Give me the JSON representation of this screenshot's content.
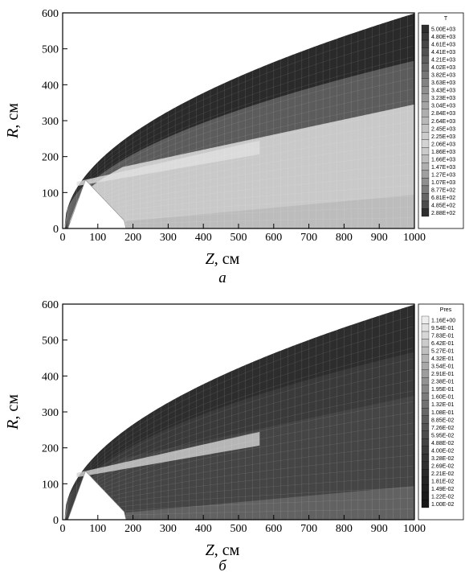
{
  "chart_data": [
    {
      "type": "heatmap",
      "caption": "а",
      "xlabel": "Z, см",
      "ylabel": "R, см",
      "xlim": [
        0,
        1000
      ],
      "ylim": [
        0,
        600
      ],
      "xticks": [
        "0",
        "100",
        "200",
        "300",
        "400",
        "500",
        "600",
        "700",
        "800",
        "900",
        "1000"
      ],
      "yticks": [
        "0",
        "100",
        "200",
        "300",
        "400",
        "500",
        "600"
      ],
      "legend": {
        "title": "T",
        "placement": "right",
        "levels": [
          "5.00E+03",
          "4.80E+03",
          "4.61E+03",
          "4.41E+03",
          "4.21E+03",
          "4.02E+03",
          "3.82E+03",
          "3.63E+03",
          "3.43E+03",
          "3.23E+03",
          "3.04E+03",
          "2.84E+03",
          "2.64E+03",
          "2.45E+03",
          "2.25E+03",
          "2.06E+03",
          "1.86E+03",
          "1.66E+03",
          "1.47E+03",
          "1.27E+03",
          "1.07E+03",
          "8.77E+02",
          "6.81E+02",
          "4.85E+02",
          "2.88E+02"
        ],
        "colors": [
          "#2e2e2e",
          "#3a3a3a",
          "#464646",
          "#525252",
          "#5e5e5e",
          "#6a6a6a",
          "#767676",
          "#828282",
          "#8e8e8e",
          "#9a9a9a",
          "#a4a4a4",
          "#aeaeae",
          "#b8b8b8",
          "#c2c2c2",
          "#cbcbcb",
          "#d3d3d3",
          "#cacaca",
          "#bdbdbd",
          "#afafaf",
          "#a0a0a0",
          "#8f8f8f",
          "#7c7c7c",
          "#666666",
          "#4d4d4d",
          "#2f2f2f"
        ]
      },
      "field_colors": {
        "outer": "#2a2a2a",
        "band": "#5c5c5c",
        "core": "#c9c9c9",
        "shock": "#e0e0e0",
        "inner": "#b0b0b0"
      }
    },
    {
      "type": "heatmap",
      "caption": "б",
      "xlabel": "Z, см",
      "ylabel": "R, см",
      "xlim": [
        0,
        1000
      ],
      "ylim": [
        0,
        600
      ],
      "xticks": [
        "0",
        "100",
        "200",
        "300",
        "400",
        "500",
        "600",
        "700",
        "800",
        "900",
        "1000"
      ],
      "yticks": [
        "0",
        "100",
        "200",
        "300",
        "400",
        "500",
        "600"
      ],
      "legend": {
        "title": "Pres",
        "placement": "right",
        "levels": [
          "1.16E+00",
          "9.54E-01",
          "7.83E-01",
          "6.42E-01",
          "5.27E-01",
          "4.32E-01",
          "3.54E-01",
          "2.91E-01",
          "2.38E-01",
          "1.95E-01",
          "1.60E-01",
          "1.32E-01",
          "1.08E-01",
          "8.85E-02",
          "7.26E-02",
          "5.95E-02",
          "4.88E-02",
          "4.00E-02",
          "3.28E-02",
          "2.69E-02",
          "2.21E-02",
          "1.81E-02",
          "1.49E-02",
          "1.22E-02",
          "1.00E-02"
        ],
        "colors": [
          "#ededed",
          "#e2e2e2",
          "#d6d6d6",
          "#cbcbcb",
          "#bfbfbf",
          "#b4b4b4",
          "#a8a8a8",
          "#9d9d9d",
          "#929292",
          "#878787",
          "#7c7c7c",
          "#717171",
          "#676767",
          "#5d5d5d",
          "#545454",
          "#4b4b4b",
          "#434343",
          "#3b3b3b",
          "#343434",
          "#2e2e2e",
          "#292929",
          "#242424",
          "#202020",
          "#1c1c1c",
          "#181818"
        ]
      },
      "field_colors": {
        "outer": "#2d2d2d",
        "band": "#3a3a3a",
        "core": "#454545",
        "shock": "#d2d2d2",
        "inner": "#7a7a7a"
      }
    }
  ]
}
